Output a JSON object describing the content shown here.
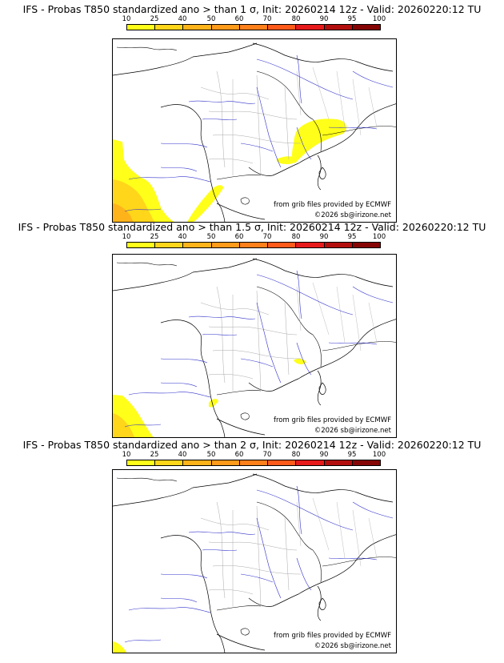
{
  "colorbar": {
    "ticks": [
      "10",
      "25",
      "40",
      "50",
      "60",
      "70",
      "80",
      "90",
      "95",
      "100"
    ],
    "colors": [
      "#ffff1a",
      "#ffd61a",
      "#ffb31a",
      "#ff9a1a",
      "#ff801a",
      "#ff5a1a",
      "#e61a1a",
      "#b30e0e",
      "#850505",
      "#5a0000"
    ]
  },
  "panels": [
    {
      "title": "IFS - Probas T850  standardized ano > than 1 σ, Init: 20260214 12z - Valid: 20260220:12 TU",
      "credit_source": "from grib files provided by ECMWF",
      "credit_copyright": "©2026 sb@irizone.net",
      "probability_areas": [
        {
          "region": "Alps / Rhône-Alpes",
          "level": "10-25"
        },
        {
          "region": "Gulf of Lion coast",
          "level": "10-25"
        },
        {
          "region": "Spanish Catalan coast",
          "level": "10-25"
        },
        {
          "region": "Atlantic / Bay of Biscay SW",
          "level": "10-40"
        }
      ]
    },
    {
      "title": "IFS - Probas T850  standardized ano > than 1.5 σ, Init: 20260214 12z - Valid: 20260220:12 TU",
      "credit_source": "from grib files provided by ECMWF",
      "credit_copyright": "©2026 sb@irizone.net",
      "probability_areas": [
        {
          "region": "Provence coast",
          "level": "10-25"
        },
        {
          "region": "Catalan coast",
          "level": "10-25"
        },
        {
          "region": "Bay of Biscay SW",
          "level": "10-25"
        }
      ]
    },
    {
      "title": "IFS - Probas T850  standardized ano > than 2 σ, Init: 20260214 12z - Valid: 20260220:12 TU",
      "credit_source": "from grib files provided by ECMWF",
      "credit_copyright": "©2026 sb@irizone.net",
      "probability_areas": [
        {
          "region": "Bay of Biscay SW corner",
          "level": "10-25"
        }
      ]
    }
  ]
}
